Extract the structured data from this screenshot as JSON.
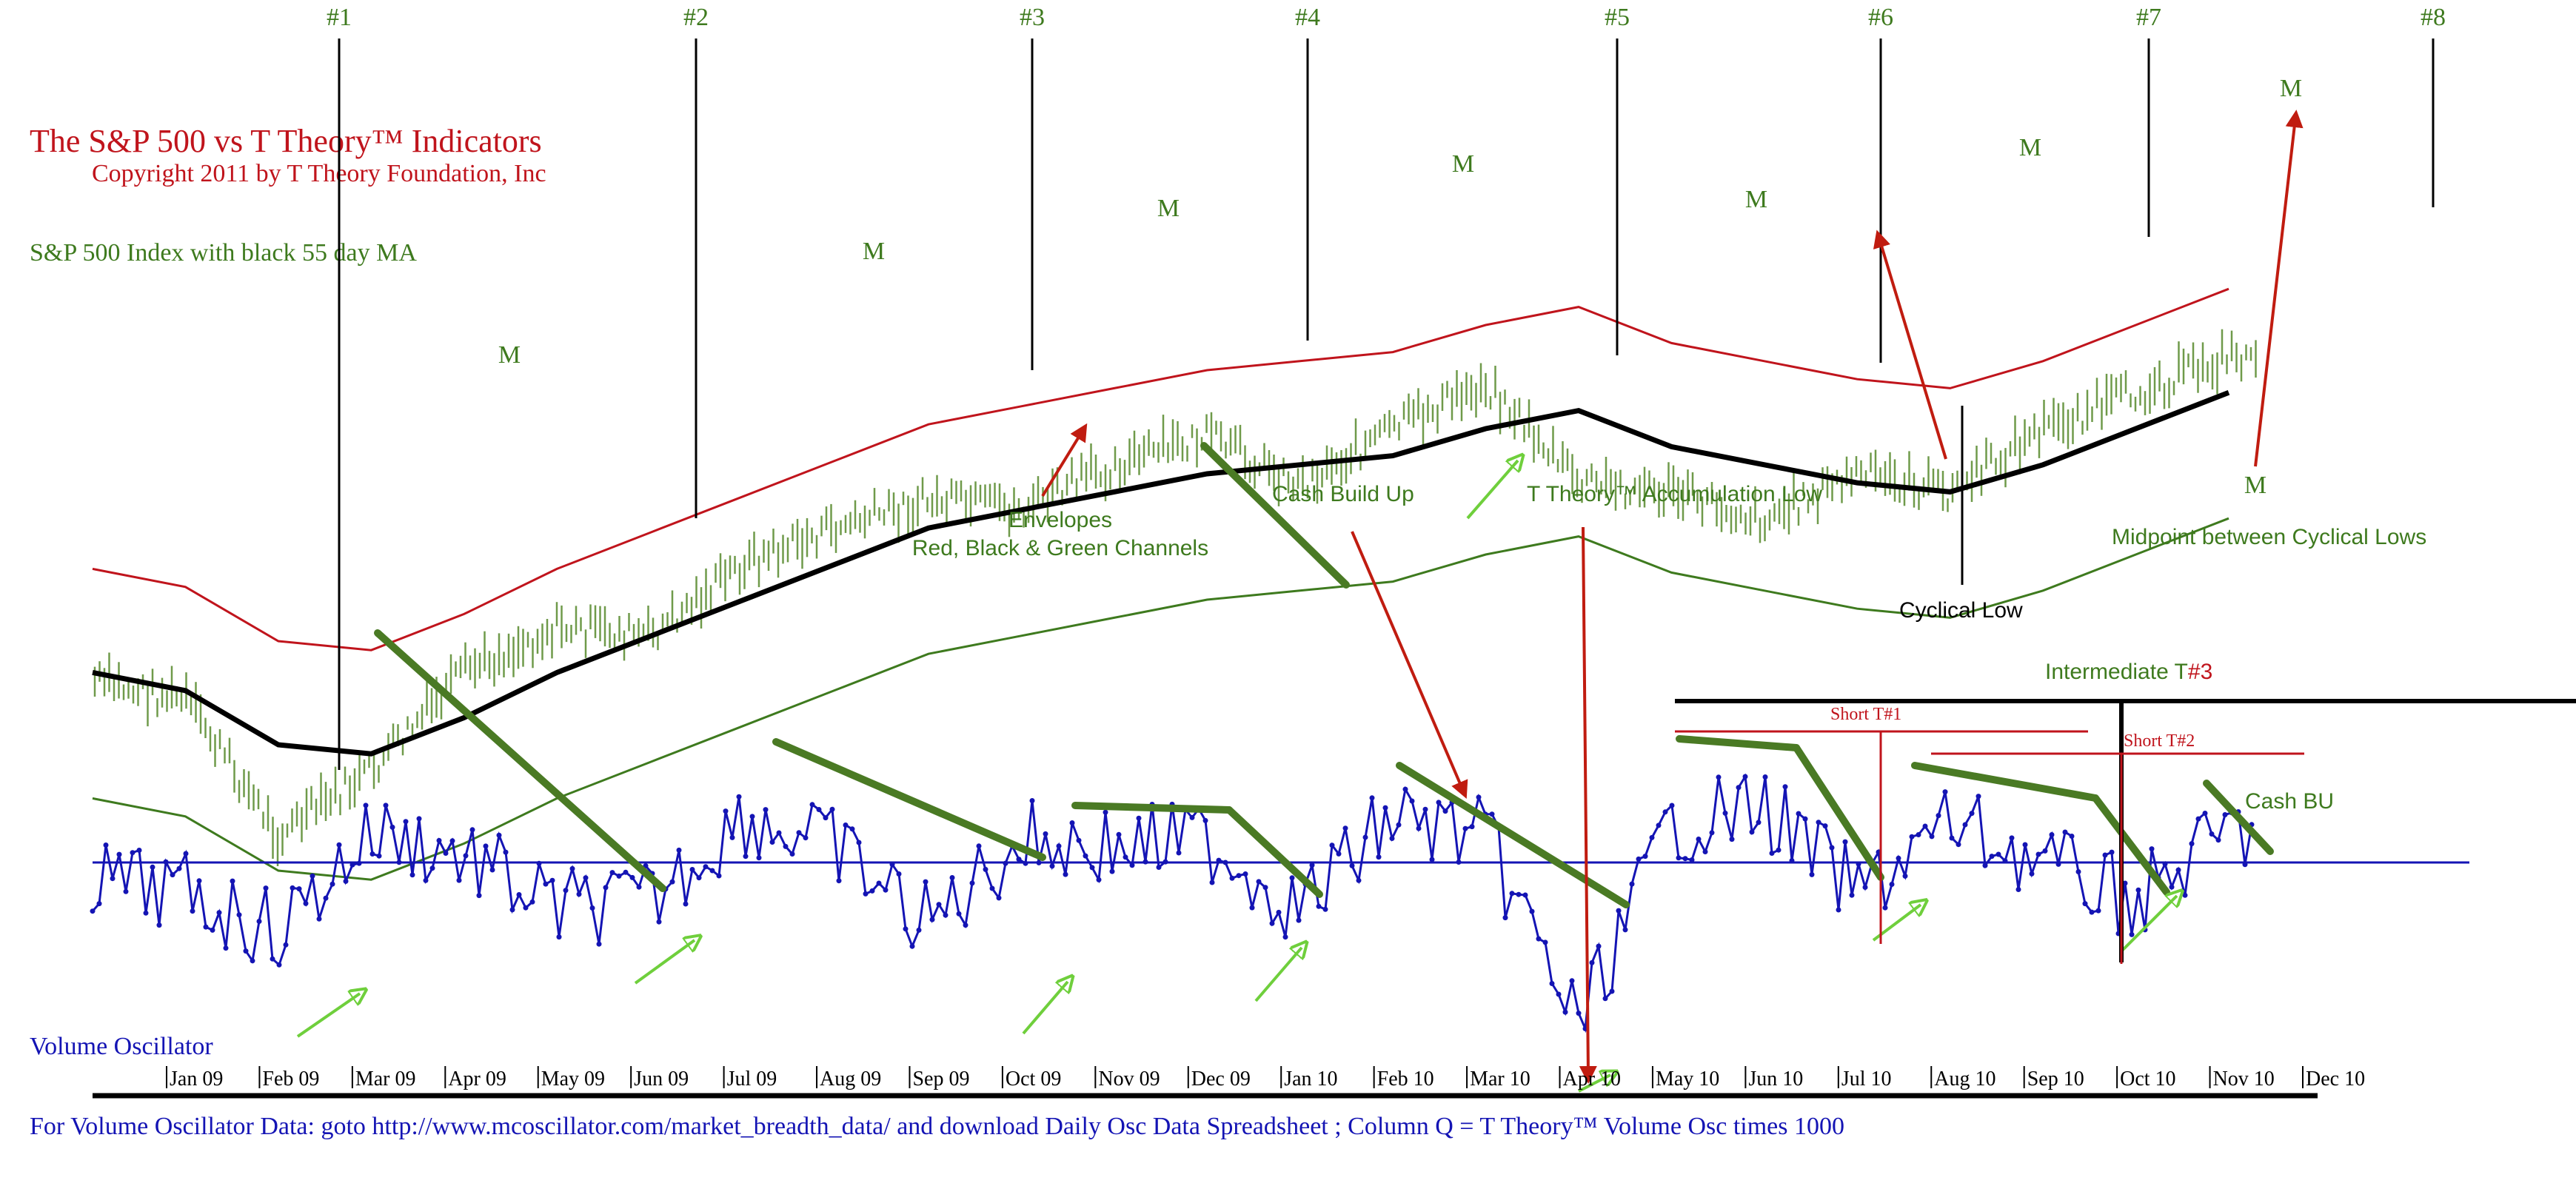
{
  "title": "The S&P 500 vs T Theory™  Indicators",
  "copyright": "Copyright 2011 by T Theory Foundation, Inc",
  "price_panel_label": "S&P 500 Index with black 55 day MA",
  "oscillator_label": "Volume Oscillator",
  "footer": "For Volume Oscillator Data: goto http://www.mcoscillator.com/market_breadth_data/ and download Daily Osc Data Spreadsheet ; Column Q = T Theory™  Volume Osc times 1000",
  "cycle_markers": [
    "#1",
    "#2",
    "#3",
    "#4",
    "#5",
    "#6",
    "#7",
    "#8"
  ],
  "midpoint_marker": "M",
  "annotations": {
    "envelopes_line1": "Envelopes",
    "envelopes_line2": "Red, Black & Green Channels",
    "cash_build_up": "Cash Build Up",
    "accumulation_low": "T Theory™ Accumulation Low",
    "midpoint_between": "Midpoint between Cyclical Lows",
    "cyclical_low": "Cyclical Low",
    "intermediate_t_prefix": "Intermediate T",
    "intermediate_t_num": "#3",
    "short_t1": "Short T#1",
    "short_t2": "Short T#2",
    "cash_bu": "Cash BU"
  },
  "colors": {
    "title_red": "#c0141c",
    "green_text": "#3e7a1e",
    "bar_green": "#6f9a4a",
    "envelope_red": "#c0141c",
    "envelope_green": "#3e7a1e",
    "ma_black": "#000000",
    "osc_blue": "#1414b4",
    "trend_green": "#4a7a24",
    "arrow_red": "#c01c10",
    "arrow_light_green": "#6fcf3c"
  },
  "chart_data": {
    "type": "line",
    "x_axis_labels": [
      "Jan 09",
      "Feb 09",
      "Mar 09",
      "Apr 09",
      "May 09",
      "Jun 09",
      "Jul 09",
      "Aug 09",
      "Sep 09",
      "Oct 09",
      "Nov 09",
      "Dec 09",
      "Jan 10",
      "Feb 10",
      "Mar 10",
      "Apr 10",
      "May 10",
      "Jun 10",
      "Jul 10",
      "Aug 10",
      "Sep 10",
      "Oct 10",
      "Nov 10",
      "Dec 10"
    ],
    "series": [
      {
        "name": "S&P 500 Index",
        "style": "bars",
        "values": [
          870,
          850,
          700,
          770,
          880,
          930,
          920,
          1000,
          1040,
          1070,
          1060,
          1110,
          1140,
          1090,
          1150,
          1200,
          1090,
          1080,
          1050,
          1100,
          1080,
          1150,
          1190,
          1230
        ]
      },
      {
        "name": "55 day MA",
        "style": "line",
        "values": [
          880,
          860,
          800,
          790,
          830,
          880,
          920,
          960,
          1000,
          1040,
          1060,
          1080,
          1100,
          1110,
          1120,
          1150,
          1170,
          1130,
          1110,
          1090,
          1080,
          1110,
          1150,
          1190
        ]
      },
      {
        "name": "Volume Oscillator",
        "style": "line",
        "values": [
          -20,
          -40,
          -90,
          40,
          10,
          -60,
          -50,
          60,
          20,
          -80,
          30,
          20,
          30,
          -60,
          60,
          30,
          -210,
          50,
          70,
          -40,
          50,
          0,
          -50,
          40
        ]
      }
    ]
  }
}
